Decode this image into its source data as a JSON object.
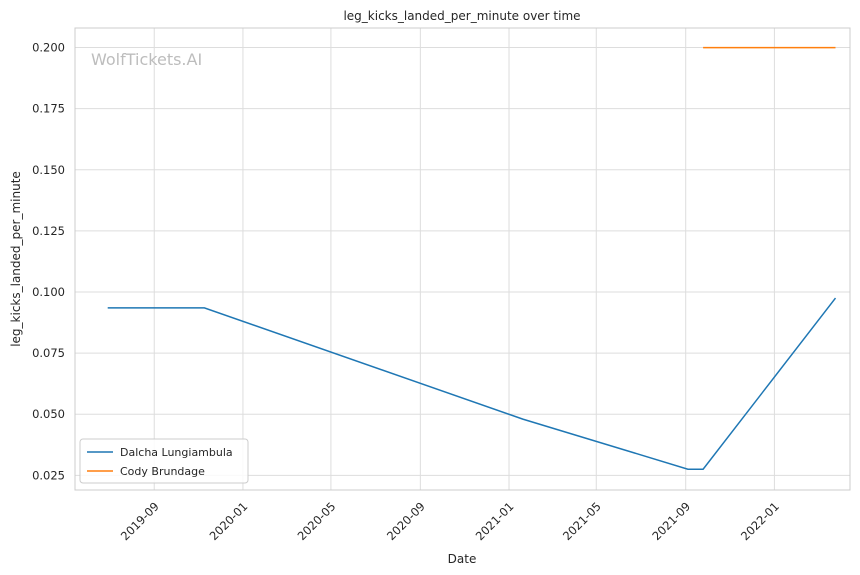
{
  "chart_data": {
    "type": "line",
    "title": "leg_kicks_landed_per_minute over time",
    "xlabel": "Date",
    "ylabel": "leg_kicks_landed_per_minute",
    "watermark": "WolfTickets.AI",
    "xlim": [
      "2019-05-15",
      "2022-04-15"
    ],
    "ylim": [
      0.019,
      0.208
    ],
    "grid": true,
    "legend_position": "lower-left",
    "x_ticks": [
      "2019-09",
      "2020-01",
      "2020-05",
      "2020-09",
      "2021-01",
      "2021-05",
      "2021-09",
      "2022-01"
    ],
    "y_ticks": [
      "0.025",
      "0.050",
      "0.075",
      "0.100",
      "0.125",
      "0.150",
      "0.175",
      "0.200"
    ],
    "series": [
      {
        "name": "Dalcha Lungiambula",
        "color": "#1f77b4",
        "points": [
          {
            "x": "2019-06-29",
            "y": 0.0935
          },
          {
            "x": "2019-11-09",
            "y": 0.0935
          },
          {
            "x": "2021-01-20",
            "y": 0.048
          },
          {
            "x": "2021-09-04",
            "y": 0.0275
          },
          {
            "x": "2021-09-25",
            "y": 0.0275
          },
          {
            "x": "2022-03-26",
            "y": 0.0975
          }
        ]
      },
      {
        "name": "Cody Brundage",
        "color": "#ff7f0e",
        "points": [
          {
            "x": "2021-09-25",
            "y": 0.2
          },
          {
            "x": "2022-03-26",
            "y": 0.2
          }
        ]
      }
    ]
  }
}
